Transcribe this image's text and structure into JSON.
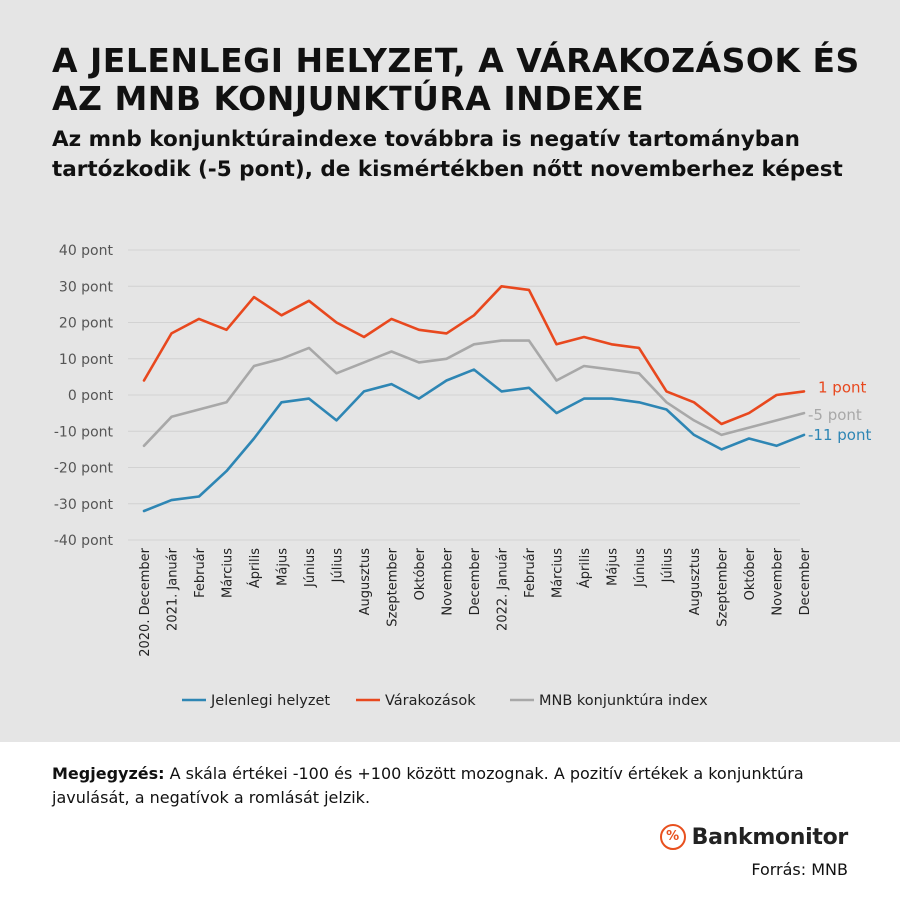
{
  "title": "A JELENLEGI HELYZET, A VÁRAKOZÁSOK ÉS AZ MNB KONJUNKTÚRA INDEXE",
  "subtitle": "Az mnb konjunktúraindexe továbbra is negatív tartományban tartózkodik (-5 pont), de kismértékben nőtt novemberhez képest",
  "note_label": "Megjegyzés:",
  "note_text": " A skála értékei -100 és +100 között mozognak. A pozitív értékek a konjunktúra javulását, a negatívok a romlását jelzik.",
  "logo": {
    "mark": "%",
    "name": "Bankmonitor"
  },
  "source": "Forrás: MNB",
  "chart_data": {
    "type": "line",
    "ylim": [
      -40,
      40
    ],
    "yticks": [
      "40 pont",
      "30 pont",
      "20 pont",
      "10 pont",
      "0 pont",
      "-10 pont",
      "-20 pont",
      "-30 pont",
      "-40 pont"
    ],
    "ytick_values": [
      40,
      30,
      20,
      10,
      0,
      -10,
      -20,
      -30,
      -40
    ],
    "grid": true,
    "legend_position": "bottom",
    "categories": [
      "2020. December",
      "2021. Január",
      "Február",
      "Március",
      "Április",
      "Május",
      "Június",
      "Július",
      "Augusztus",
      "Szeptember",
      "Október",
      "November",
      "December",
      "2022. Január",
      "Február",
      "Március",
      "Április",
      "Május",
      "Június",
      "Július",
      "Augusztus",
      "Szeptember",
      "Október",
      "November",
      "December"
    ],
    "series": [
      {
        "name": "Jelenlegi helyzet",
        "color": "#2e86b4",
        "end_label": "-11 pont",
        "values": [
          -32,
          -29,
          -28,
          -21,
          -12,
          -2,
          -1,
          -7,
          1,
          3,
          -1,
          4,
          7,
          1,
          2,
          -5,
          -1,
          -1,
          -2,
          -4,
          -11,
          -15,
          -12,
          -14,
          -11
        ]
      },
      {
        "name": "Várakozások",
        "color": "#e8481e",
        "end_label": "1 pont",
        "values": [
          4,
          17,
          21,
          18,
          27,
          22,
          26,
          20,
          16,
          21,
          18,
          17,
          22,
          30,
          29,
          14,
          16,
          14,
          13,
          1,
          -2,
          -8,
          -5,
          0,
          1
        ]
      },
      {
        "name": "MNB konjunktúra index",
        "color": "#a8a8a8",
        "end_label": "-5 pont",
        "values": [
          -14,
          -6,
          -4,
          -2,
          8,
          10,
          13,
          6,
          9,
          12,
          9,
          10,
          14,
          15,
          15,
          4,
          8,
          7,
          6,
          -2,
          -7,
          -11,
          -9,
          -7,
          -5
        ]
      }
    ]
  }
}
